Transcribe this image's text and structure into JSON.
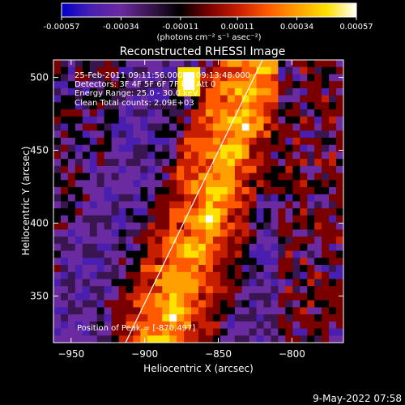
{
  "colorbar": {
    "ticks": [
      "-0.00057",
      "-0.00034",
      "-0.00011",
      "0.00011",
      "0.00034",
      "0.00057"
    ],
    "units": "(photons cm⁻² s⁻¹ asec⁻²)",
    "range": [
      -0.00057,
      0.00057
    ]
  },
  "chart_data": {
    "type": "heatmap",
    "title": "Reconstructed RHESSI Image",
    "xlabel": "Heliocentric X (arcsec)",
    "ylabel": "Heliocentric Y (arcsec)",
    "xlim": [
      -962,
      -765
    ],
    "ylim": [
      318,
      512
    ],
    "x_ticks": [
      -950,
      -900,
      -850,
      -800
    ],
    "y_ticks": [
      350,
      400,
      450,
      500
    ],
    "limb_line": {
      "x": [
        -913,
        -820
      ],
      "y": [
        318,
        512
      ]
    },
    "annotations": [
      "25-Feb-2011 09:11:56.000 to 09:13:48.000",
      "Detectors: 3F 4F 5F 6F 7F 8F, Att 0",
      "Energy Range: 25.0 - 30.0 keV",
      "Clean     Total counts: 2.09E+03"
    ],
    "peak": {
      "label": "Position of Peak = [-870,497]",
      "x": -870,
      "y": 497
    },
    "colormap": [
      "#0000c8",
      "#4a1fb0",
      "#6a2aa0",
      "#3a1650",
      "#000000",
      "#7a0000",
      "#c81e00",
      "#ff5a00",
      "#ffa000",
      "#ffe100",
      "#ffffff"
    ]
  },
  "footer": {
    "date": "9-May-2022 07:58"
  }
}
